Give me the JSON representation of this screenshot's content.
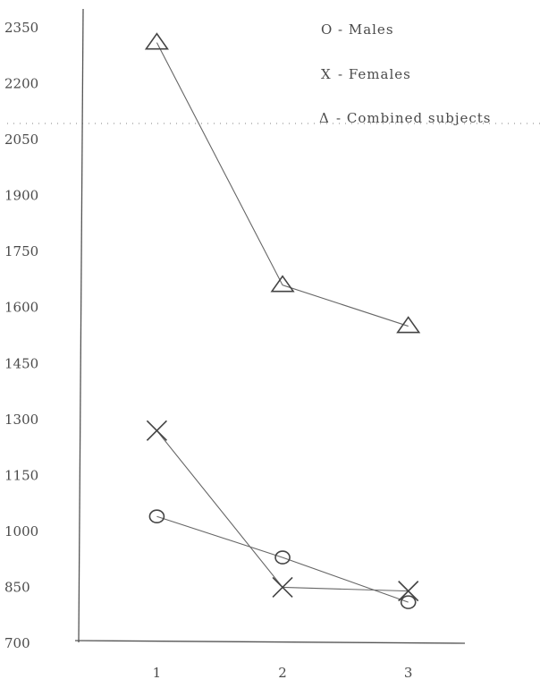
{
  "chart_data": {
    "type": "line",
    "title": "",
    "xlabel": "",
    "ylabel": "",
    "x": [
      1,
      2,
      3
    ],
    "x_ticks": [
      "1",
      "2",
      "3"
    ],
    "y_ticks": [
      "2350",
      "2200",
      "2050",
      "1900",
      "1750",
      "1600",
      "1450",
      "1300",
      "1150",
      "1000",
      "850",
      "700"
    ],
    "ylim": [
      700,
      2350
    ],
    "xlim": [
      0.35,
      3.45
    ],
    "grid": false,
    "legend_position": "top-right",
    "series": [
      {
        "name": "Males",
        "marker": "circle",
        "values": [
          1040,
          930,
          810
        ]
      },
      {
        "name": "Females",
        "marker": "x",
        "values": [
          1270,
          850,
          840
        ]
      },
      {
        "name": "Combined subjects",
        "marker": "triangle",
        "values": [
          2310,
          1660,
          1550
        ]
      }
    ],
    "legend": [
      {
        "symbol": "O",
        "text": "- Males"
      },
      {
        "symbol": "X",
        "text": "- Females"
      },
      {
        "symbol": "Δ",
        "text": "- Combined subjects"
      }
    ]
  }
}
